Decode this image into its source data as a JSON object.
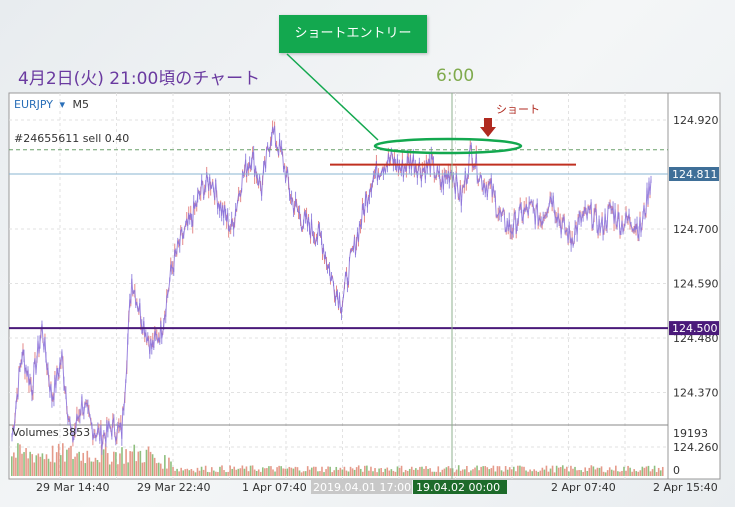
{
  "caption": "4月2日(火) 21:00頃のチャート",
  "time_label": "6:00",
  "entry_label": "ショートエントリー",
  "short_label": "ショート",
  "symbol": "EURJPY",
  "symbol_arrow": "▾",
  "timeframe": "M5",
  "order_label": "#24655611 sell 0.40",
  "volumes_label": "Volumes 3853",
  "colors": {
    "accent_green": "#13a84f",
    "caption_purple": "#6a3aa0",
    "price_line_blue": "#3f6f98",
    "hline_purple": "#4a1a7a",
    "entry_red": "#c03020"
  },
  "chart_data": {
    "type": "line",
    "title": "",
    "xlabel": "",
    "ylabel": "",
    "ylim": [
      124.18,
      125.0
    ],
    "y_ticks": [
      "124.920",
      "124.700",
      "124.590",
      "124.480",
      "124.370",
      "124.260"
    ],
    "x_tick_labels": [
      "29 Mar 14:40",
      "29 Mar 22:40",
      "1 Apr 07:40",
      "2019.04.01 17:00",
      "19.04.02 00:00",
      "2 Apr 07:40",
      "2 Apr 15:40"
    ],
    "current_price_label": "124.811",
    "hline_label": "124.500",
    "volume_axis_labels": [
      "19193",
      "0"
    ],
    "current_price": 124.811,
    "horizontal_level": 124.5,
    "entry_level": 124.83,
    "series": [
      {
        "values": [
          124.28,
          124.45,
          124.38,
          124.5,
          124.36,
          124.44,
          124.27,
          124.35,
          124.3,
          124.28,
          124.3,
          124.29,
          124.6,
          124.52,
          124.46,
          124.5,
          124.62,
          124.68,
          124.72,
          124.78,
          124.8,
          124.74,
          124.7,
          124.8,
          124.85,
          124.78,
          124.9,
          124.85,
          124.76,
          124.72,
          124.7,
          124.68,
          124.6,
          124.55,
          124.64,
          124.72,
          124.8,
          124.83,
          124.84,
          124.82,
          124.84,
          124.82,
          124.83,
          124.79,
          124.82,
          124.76,
          124.86,
          124.8,
          124.78,
          124.72,
          124.7,
          124.73,
          124.74,
          124.72,
          124.77,
          124.71,
          124.68,
          124.72,
          124.73,
          124.7,
          124.74,
          124.71,
          124.72,
          124.7,
          124.8
        ]
      }
    ]
  }
}
